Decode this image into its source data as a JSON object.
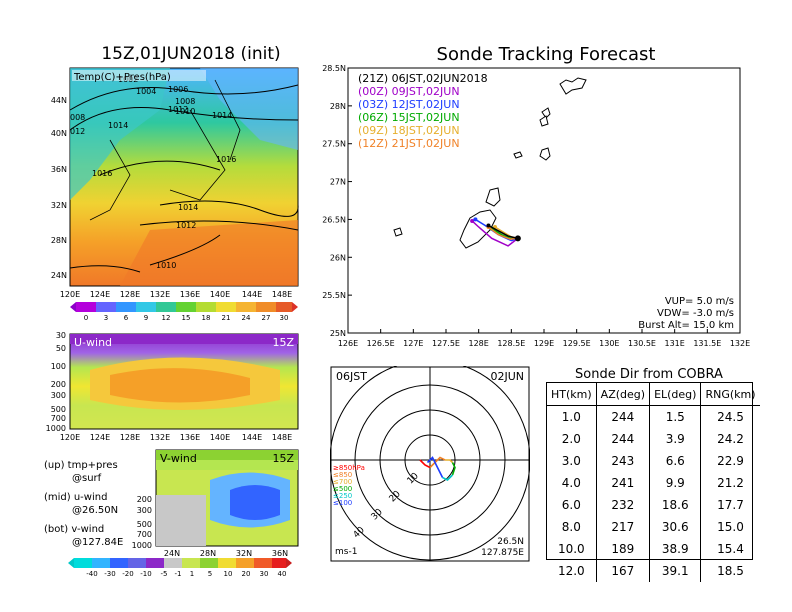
{
  "left": {
    "title": "15Z,01JUN2018 (init)",
    "map_overlay_label": "Temp(C)+Pres(hPa)",
    "map_lat_ticks": [
      "44N",
      "40N",
      "36N",
      "32N",
      "28N",
      "24N"
    ],
    "map_lon_ticks": [
      "120E",
      "124E",
      "128E",
      "132E",
      "136E",
      "140E",
      "144E",
      "148E"
    ],
    "isobars": [
      "1002",
      "1004",
      "1006",
      "1008",
      "1008",
      "1010",
      "1012",
      "1014",
      "1014",
      "1014",
      "1016",
      "1016",
      "1014",
      "1012",
      "1010",
      "1012",
      "008",
      "012"
    ],
    "temp_colorbar": [
      "0",
      "3",
      "6",
      "9",
      "12",
      "15",
      "18",
      "21",
      "24",
      "27",
      "30"
    ],
    "uwind": {
      "label": "U-wind",
      "time": "15Z",
      "y_ticks": [
        "30",
        "50",
        "100",
        "200",
        "300",
        "500",
        "700",
        "1000"
      ],
      "x_ticks": [
        "120E",
        "124E",
        "128E",
        "132E",
        "136E",
        "140E",
        "144E",
        "148E"
      ]
    },
    "vwind": {
      "label": "V-wind",
      "time": "15Z",
      "y_ticks": [
        "200",
        "300",
        "500",
        "700",
        "1000"
      ],
      "x_ticks": [
        "24N",
        "28N",
        "32N",
        "36N"
      ]
    },
    "wind_colorbar": [
      "-40",
      "-30",
      "-20",
      "-10",
      "-5",
      "-1",
      "1",
      "5",
      "10",
      "20",
      "30",
      "40"
    ],
    "notes": [
      {
        "head": "(up) tmp+pres",
        "sub": "@surf"
      },
      {
        "head": "(mid) u-wind",
        "sub": "@26.50N"
      },
      {
        "head": "(bot) v-wind",
        "sub": "@127.84E"
      }
    ]
  },
  "track": {
    "title": "Sonde Tracking Forecast",
    "lat_ticks": [
      "28.5N",
      "28N",
      "27.5N",
      "27N",
      "26.5N",
      "26N",
      "25.5N",
      "25N"
    ],
    "lon_ticks": [
      "126E",
      "126.5E",
      "127E",
      "127.5E",
      "128E",
      "128.5E",
      "129E",
      "129.5E",
      "130E",
      "130.5E",
      "131E",
      "131.5E",
      "132E"
    ],
    "legend": [
      {
        "text": "(21Z)  06JST,02JUN2018",
        "color": "#000000"
      },
      {
        "text": "(00Z)  09JST,02JUN",
        "color": "#a000c8"
      },
      {
        "text": "(03Z)  12JST,02JUN",
        "color": "#1e3cff"
      },
      {
        "text": "(06Z)  15JST,02JUN",
        "color": "#00aa00"
      },
      {
        "text": "(09Z)  18JST,02JUN",
        "color": "#e6af2d"
      },
      {
        "text": "(12Z)  21JST,02JUN",
        "color": "#f08228"
      }
    ],
    "params": {
      "vup": "VUP=  5.0 m/s",
      "vdw": "VDW= -3.0 m/s",
      "burst": "Burst Alt= 15.0 km"
    }
  },
  "hodograph": {
    "time_left": "06JST",
    "date_right": "02JUN",
    "ring_labels": [
      "10",
      "20",
      "30",
      "40"
    ],
    "level_legend": [
      {
        "text": "≥850hPa",
        "color": "#ff0000"
      },
      {
        "text": "≤850",
        "color": "#f08228"
      },
      {
        "text": "≤700",
        "color": "#e6af2d"
      },
      {
        "text": "≤500",
        "color": "#00aa00"
      },
      {
        "text": "≤250",
        "color": "#00c8c8"
      },
      {
        "text": "≤100",
        "color": "#1e3cff"
      }
    ],
    "units": "ms-1",
    "loc_lat": "26.5N",
    "loc_lon": "127.875E"
  },
  "sonde_dir": {
    "title": "Sonde Dir from COBRA",
    "headers": [
      "HT(km)",
      "AZ(deg)",
      "EL(deg)",
      "RNG(km)"
    ],
    "rows": [
      [
        "1.0",
        "244",
        "1.5",
        "24.5"
      ],
      [
        "2.0",
        "244",
        "3.9",
        "24.2"
      ],
      [
        "3.0",
        "243",
        "6.6",
        "22.9"
      ],
      [
        "4.0",
        "241",
        "9.9",
        "21.2"
      ],
      [
        "6.0",
        "232",
        "18.6",
        "17.7"
      ],
      [
        "8.0",
        "217",
        "30.6",
        "15.0"
      ],
      [
        "10.0",
        "189",
        "38.9",
        "15.4"
      ],
      [
        "12.0",
        "167",
        "39.1",
        "18.5"
      ]
    ]
  },
  "chart_data": [
    {
      "type": "line",
      "title": "Sonde Tracking Forecast",
      "xlim": [
        126,
        132
      ],
      "ylim": [
        25,
        28.5
      ],
      "series": [
        {
          "name": "(00Z)  09JST,02JUN",
          "color": "#a000c8",
          "x": [
            128.6,
            128.45,
            128.2,
            128.0,
            127.9
          ],
          "y": [
            26.25,
            26.15,
            26.25,
            26.4,
            26.48
          ]
        },
        {
          "name": "(03Z)  12JST,02JUN",
          "color": "#1e3cff",
          "x": [
            128.6,
            128.5,
            128.3,
            128.1,
            127.95
          ],
          "y": [
            26.25,
            26.22,
            26.3,
            26.42,
            26.5
          ]
        },
        {
          "name": "(06Z)  15JST,02JUN",
          "color": "#00aa00",
          "x": [
            128.6,
            128.48,
            128.35,
            128.2
          ],
          "y": [
            26.25,
            26.25,
            26.3,
            26.38
          ]
        },
        {
          "name": "(09Z)  18JST,02JUN",
          "color": "#e6af2d",
          "x": [
            128.6,
            128.5,
            128.4,
            128.25
          ],
          "y": [
            26.25,
            26.27,
            26.32,
            26.4
          ]
        },
        {
          "name": "(12Z)  21JST,02JUN",
          "color": "#f08228",
          "x": [
            128.6,
            128.48,
            128.3,
            128.15
          ],
          "y": [
            26.25,
            26.24,
            26.3,
            26.4
          ]
        },
        {
          "name": "(21Z)  06JST,02JUN2018",
          "color": "#000000",
          "x": [
            128.6,
            128.45,
            128.3,
            128.15
          ],
          "y": [
            26.25,
            26.28,
            26.35,
            26.42
          ]
        }
      ]
    },
    {
      "type": "line",
      "title": "",
      "xlim": [
        -40,
        40
      ],
      "ylim": [
        -40,
        40
      ],
      "series": [
        {
          "name": "≥850hPa",
          "color": "#ff0000",
          "x": [
            -4,
            -2,
            0
          ],
          "y": [
            0,
            -2,
            -3
          ]
        },
        {
          "name": "≤850",
          "color": "#f08228",
          "x": [
            0,
            2,
            4,
            6
          ],
          "y": [
            -3,
            -1,
            1,
            0
          ]
        },
        {
          "name": "≤700",
          "color": "#e6af2d",
          "x": [
            6,
            8,
            9
          ],
          "y": [
            0,
            0,
            -1
          ]
        },
        {
          "name": "≤500",
          "color": "#00aa00",
          "x": [
            9,
            10,
            9
          ],
          "y": [
            -1,
            -3,
            -6
          ]
        },
        {
          "name": "≤250",
          "color": "#00c8c8",
          "x": [
            9,
            7,
            5
          ],
          "y": [
            -6,
            -8,
            -7
          ]
        },
        {
          "name": "≤100",
          "color": "#1e3cff",
          "x": [
            5,
            3,
            1,
            -1
          ],
          "y": [
            -7,
            -3,
            1,
            -1
          ]
        }
      ]
    },
    {
      "type": "table",
      "title": "Sonde Dir from COBRA",
      "columns": [
        "HT(km)",
        "AZ(deg)",
        "EL(deg)",
        "RNG(km)"
      ],
      "rows": [
        [
          1.0,
          244,
          1.5,
          24.5
        ],
        [
          2.0,
          244,
          3.9,
          24.2
        ],
        [
          3.0,
          243,
          6.6,
          22.9
        ],
        [
          4.0,
          241,
          9.9,
          21.2
        ],
        [
          6.0,
          232,
          18.6,
          17.7
        ],
        [
          8.0,
          217,
          30.6,
          15.0
        ],
        [
          10.0,
          189,
          38.9,
          15.4
        ],
        [
          12.0,
          167,
          39.1,
          18.5
        ]
      ]
    }
  ]
}
